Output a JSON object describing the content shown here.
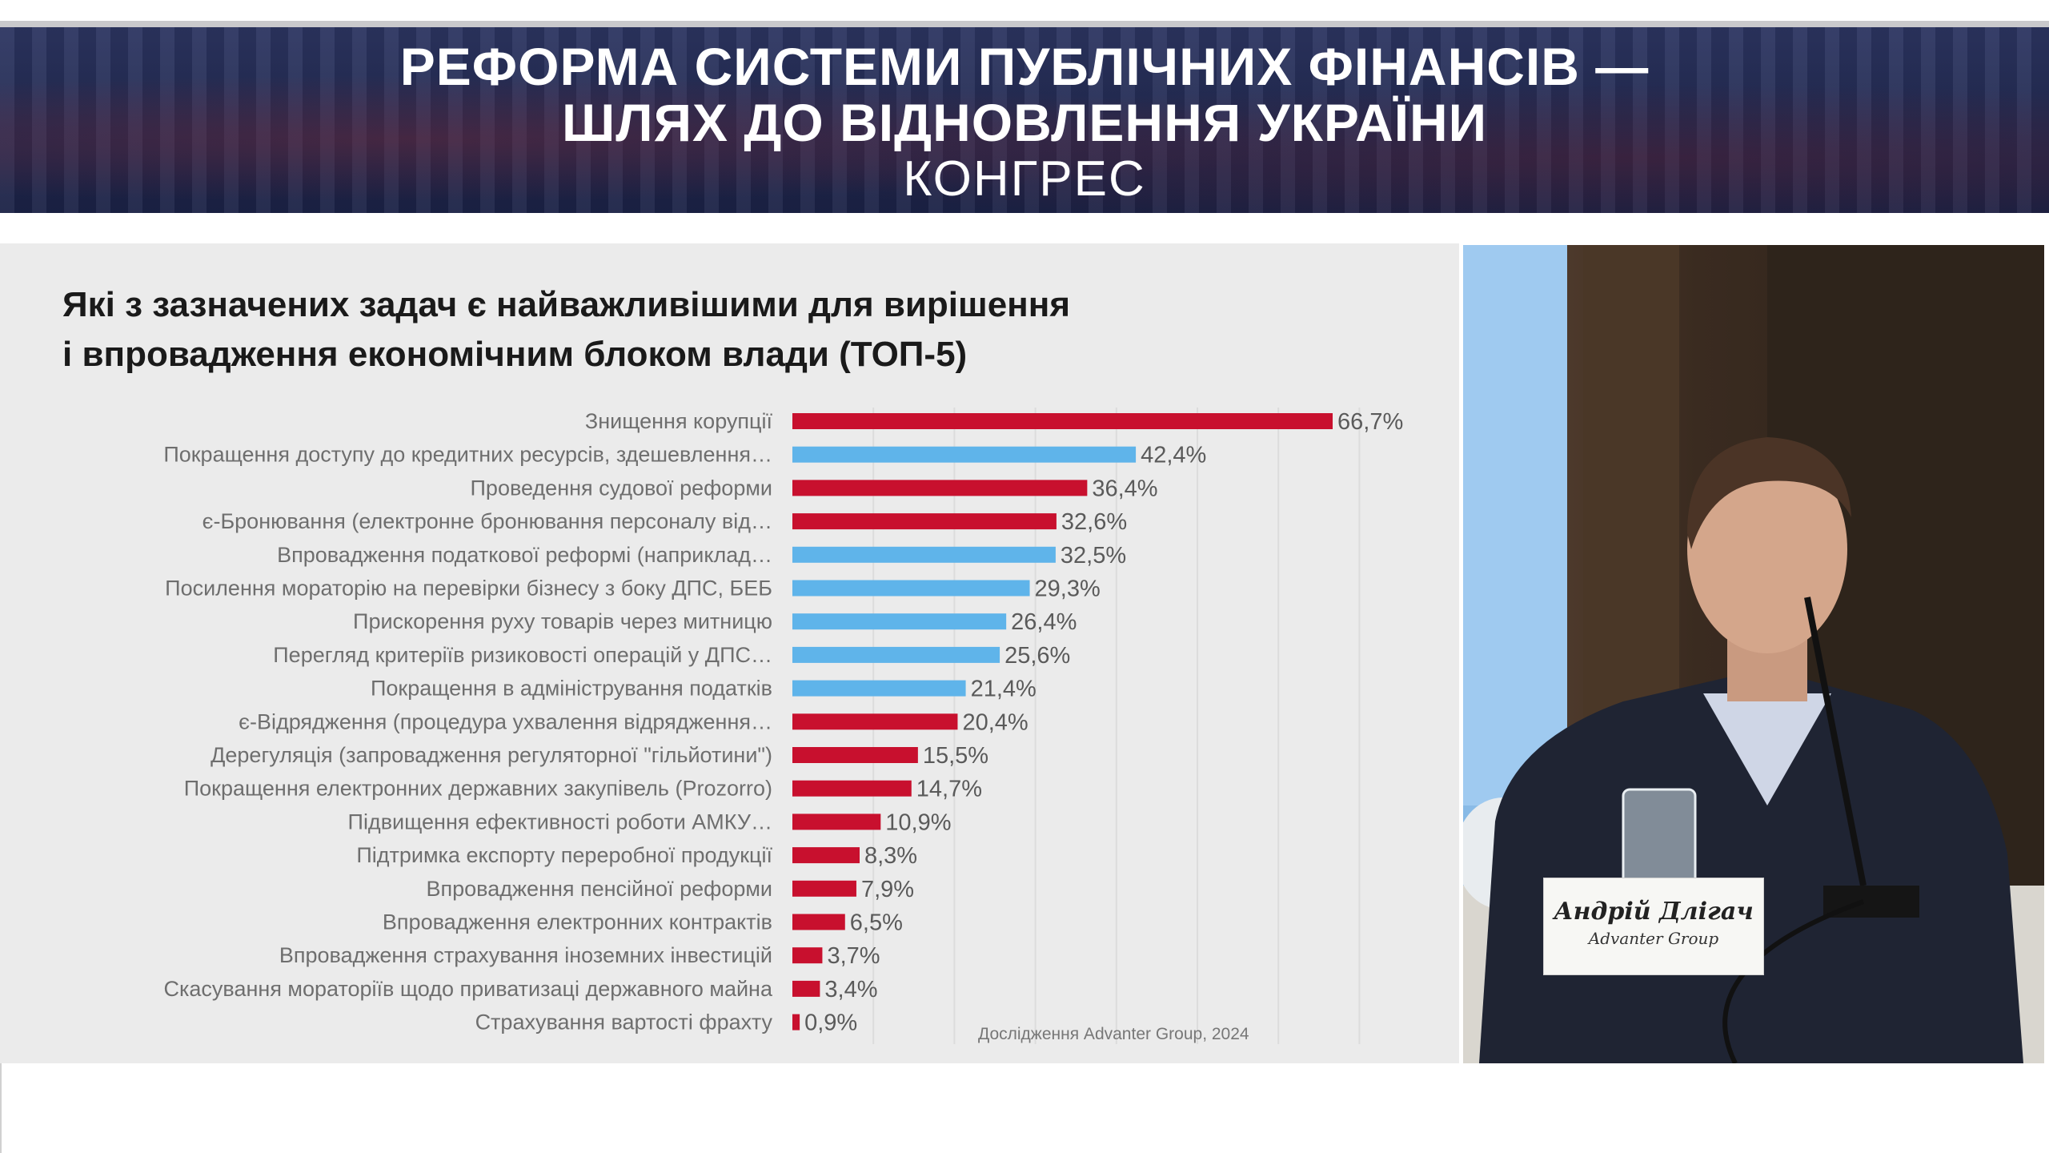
{
  "banner": {
    "title_line1": "РЕФОРМА СИСТЕМИ ПУБЛІЧНИХ ФІНАНСІВ —",
    "title_line2": "ШЛЯХ ДО ВІДНОВЛЕННЯ УКРАЇНИ",
    "subtitle": "КОНГРЕС"
  },
  "slide": {
    "title_line1": "Які з зазначених задач є найважливішими для вирішення",
    "title_line2": "і впровадження економічним блоком влади (ТОП-5)",
    "source": "Дослідження Advanter Group, 2024"
  },
  "colors": {
    "red": "#c8102e",
    "blue": "#5fb4ea",
    "banner_bg": "#252d58"
  },
  "chart_data": {
    "type": "bar",
    "orientation": "horizontal",
    "title": "Які з зазначених задач є найважливішими для вирішення і впровадження економічним блоком влади (ТОП-5)",
    "value_unit": "%",
    "xlim": [
      0,
      70
    ],
    "grid": true,
    "categories": [
      "Знищення корупції",
      "Покращення доступу до кредитних ресурсів, здешевлення…",
      "Проведення судової реформи",
      "є-Бронювання (електронне бронювання персоналу від…",
      "Впровадження податкової реформі (наприклад…",
      "Посилення мораторію на перевірки бізнесу з боку ДПС, БЕБ",
      "Прискорення руху товарів через митницю",
      "Перегляд критеріїв ризиковості операцій у ДПС…",
      "Покращення в адміністрування податків",
      "є-Відрядження (процедура ухвалення відрядження…",
      "Дерегуляція (запровадження регуляторної \"гільйотини\")",
      "Покращення електронних державних закупівель (Prozorro)",
      "Підвищення ефективності роботи АМКУ…",
      "Підтримка експорту переробної продукції",
      "Впровадження пенсійної реформи",
      "Впровадження електронних контрактів",
      "Впровадження страхування іноземних інвестицій",
      "Скасування мораторіїв щодо приватизаці державного майна",
      "Страхування вартості фрахту"
    ],
    "values": [
      66.7,
      42.4,
      36.4,
      32.6,
      32.5,
      29.3,
      26.4,
      25.6,
      21.4,
      20.4,
      15.5,
      14.7,
      10.9,
      8.3,
      7.9,
      6.5,
      3.7,
      3.4,
      0.9
    ],
    "value_labels": [
      "66,7%",
      "42,4%",
      "36,4%",
      "32,6%",
      "32,5%",
      "29,3%",
      "26,4%",
      "25,6%",
      "21,4%",
      "20,4%",
      "15,5%",
      "14,7%",
      "10,9%",
      "8,3%",
      "7,9%",
      "6,5%",
      "3,7%",
      "3,4%",
      "0,9%"
    ],
    "bar_colors": [
      "red",
      "blue",
      "red",
      "red",
      "blue",
      "blue",
      "blue",
      "blue",
      "blue",
      "red",
      "red",
      "red",
      "red",
      "red",
      "red",
      "red",
      "red",
      "red",
      "red"
    ]
  },
  "video": {
    "speaker_name": "Андрій Длігач",
    "speaker_org": "Advanter Group"
  }
}
